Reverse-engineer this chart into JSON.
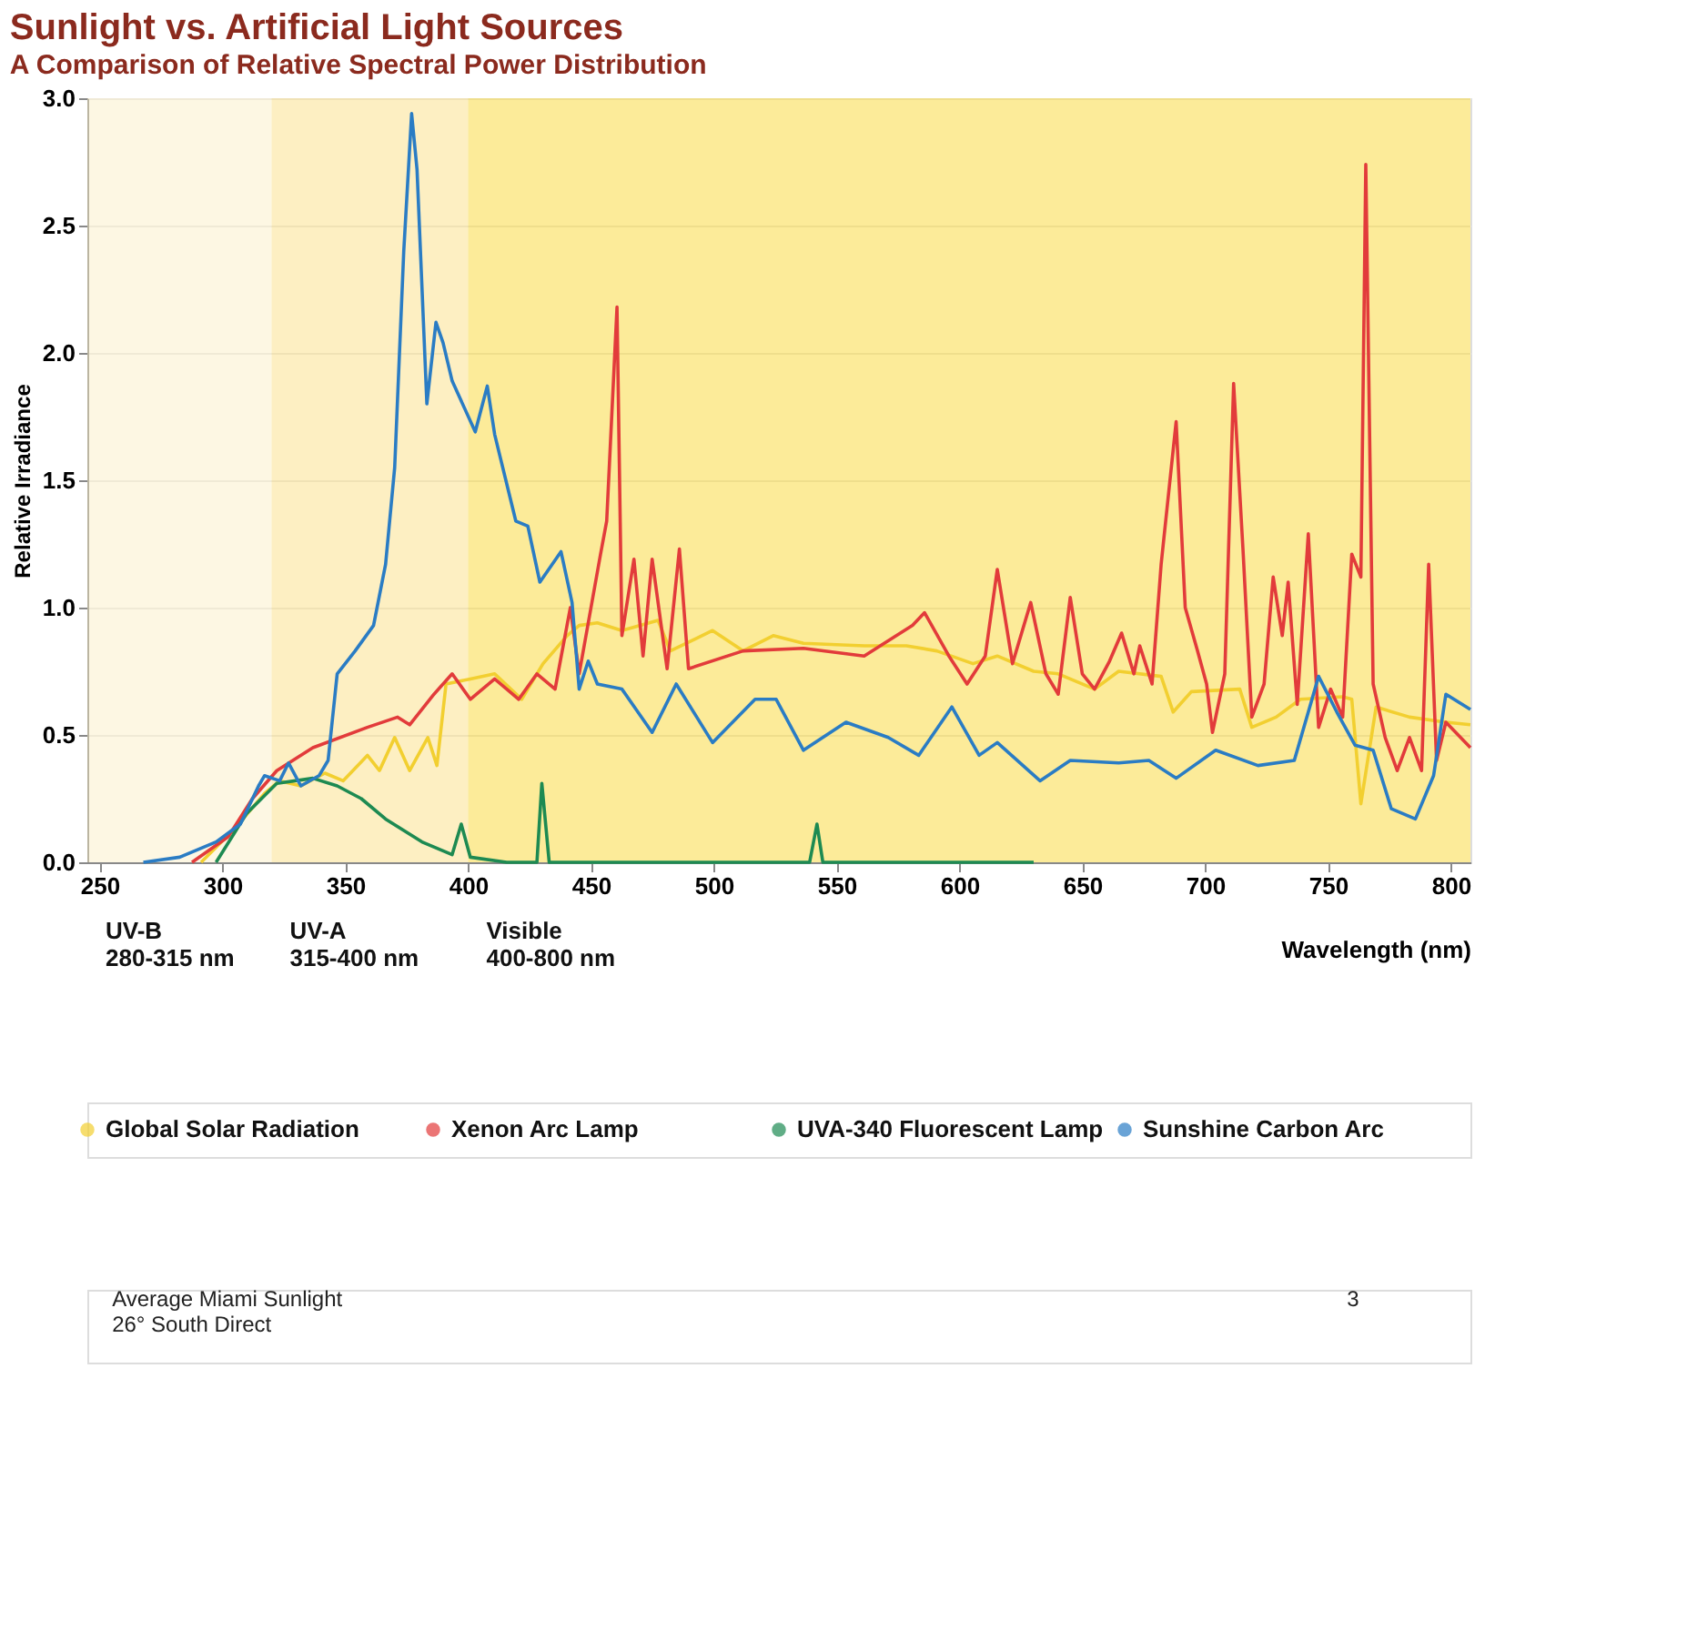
{
  "chart_data": {
    "type": "line",
    "title": "Sunlight vs. Artificial Light Sources",
    "subtitle": "A Comparison of Relative Spectral Power Distribution",
    "xlabel": "Wavelength (nm)",
    "ylabel": "Relative Irradiance",
    "xlim": [
      245,
      808
    ],
    "xticks": [
      250,
      300,
      350,
      400,
      450,
      500,
      550,
      600,
      650,
      700,
      750,
      800
    ],
    "ylim": [
      0,
      3.0
    ],
    "yticks": [
      {
        "value": 0,
        "label": "0.0"
      },
      {
        "value": 0.5,
        "label": "0.5"
      },
      {
        "value": 1,
        "label": "1.0"
      },
      {
        "value": 1.5,
        "label": "1.5"
      },
      {
        "value": 2,
        "label": "2.0"
      },
      {
        "value": 2.5,
        "label": "2.5"
      },
      {
        "value": 3,
        "label": "3.0"
      }
    ],
    "grid": "y",
    "legend": "bottom",
    "line_style": "solid",
    "marker": "none",
    "series": [
      {
        "name": "Global Solar Radiation",
        "color": "#f2cf30",
        "x": [
          291.3,
          304.8,
          317.1,
          323.3,
          331.9,
          341.7,
          349.1,
          359,
          363.9,
          370.1,
          376.2,
          383.6,
          387.3,
          391,
          400.9,
          410.8,
          421.8,
          430.5,
          440.3,
          445.2,
          452.6,
          462.6,
          477.3,
          482.3,
          499.5,
          511.9,
          524.2,
          536.5,
          561.2,
          578.4,
          590.8,
          605.5,
          615.4,
          630.2,
          640.2,
          655,
          664.8,
          682.1,
          687,
          694.4,
          714.1,
          719,
          728.9,
          738.8,
          756,
          759.7,
          763.4,
          769.6,
          783.2,
          798,
          808
        ],
        "values": [
          0,
          0.13,
          0.27,
          0.32,
          0.3,
          0.35,
          0.32,
          0.42,
          0.36,
          0.49,
          0.36,
          0.49,
          0.38,
          0.7,
          0.72,
          0.74,
          0.64,
          0.78,
          0.89,
          0.93,
          0.94,
          0.91,
          0.95,
          0.83,
          0.91,
          0.83,
          0.89,
          0.86,
          0.85,
          0.85,
          0.83,
          0.78,
          0.81,
          0.75,
          0.74,
          0.68,
          0.75,
          0.73,
          0.59,
          0.67,
          0.68,
          0.53,
          0.57,
          0.64,
          0.65,
          0.64,
          0.23,
          0.61,
          0.57,
          0.55,
          0.54
        ]
      },
      {
        "name": "Xenon Arc Lamp",
        "color": "#e23b3b",
        "x": [
          287.6,
          302.3,
          312.2,
          322.1,
          336.8,
          359,
          371.3,
          376.2,
          386.1,
          393.5,
          400.9,
          410.8,
          420.6,
          428,
          435.4,
          441.6,
          445.2,
          453.9,
          456.4,
          460.6,
          462.6,
          467.5,
          471.2,
          474.9,
          481,
          486,
          489.7,
          511.9,
          536.5,
          561.2,
          580.9,
          585.8,
          595.7,
          603.1,
          610.5,
          615.4,
          621.6,
          629,
          635.2,
          640.2,
          645.1,
          650,
          655,
          661.1,
          666,
          671,
          673.4,
          678.4,
          682.1,
          688.2,
          691.9,
          696.9,
          700.6,
          703,
          708,
          711.6,
          715.4,
          719,
          724,
          727.7,
          731.4,
          733.8,
          737.5,
          742,
          746.2,
          751.1,
          756,
          759.7,
          763.4,
          765.4,
          768.4,
          773.3,
          778.2,
          783.2,
          788.1,
          791,
          794.2,
          798,
          808
        ],
        "values": [
          0,
          0.1,
          0.25,
          0.36,
          0.45,
          0.53,
          0.57,
          0.54,
          0.66,
          0.74,
          0.64,
          0.72,
          0.64,
          0.74,
          0.68,
          1.0,
          0.74,
          1.21,
          1.34,
          2.18,
          0.89,
          1.19,
          0.81,
          1.19,
          0.76,
          1.23,
          0.76,
          0.83,
          0.84,
          0.81,
          0.93,
          0.98,
          0.81,
          0.7,
          0.81,
          1.15,
          0.78,
          1.02,
          0.74,
          0.66,
          1.04,
          0.74,
          0.68,
          0.79,
          0.9,
          0.74,
          0.85,
          0.7,
          1.17,
          1.73,
          1.0,
          0.83,
          0.7,
          0.51,
          0.74,
          1.88,
          1.23,
          0.57,
          0.7,
          1.12,
          0.89,
          1.1,
          0.62,
          1.29,
          0.53,
          0.68,
          0.57,
          1.21,
          1.12,
          2.74,
          0.7,
          0.49,
          0.36,
          0.49,
          0.36,
          1.17,
          0.4,
          0.55,
          0.45
        ]
      },
      {
        "name": "UVA-340 Fluorescent Lamp",
        "color": "#1d8a52",
        "x": [
          297.4,
          309.7,
          322.1,
          336.8,
          346.7,
          356.5,
          366.4,
          381.2,
          393.5,
          397.2,
          400.9,
          415.7,
          428,
          430,
          433,
          539,
          542,
          544.4,
          630.2
        ],
        "values": [
          0,
          0.19,
          0.31,
          0.33,
          0.3,
          0.25,
          0.17,
          0.08,
          0.03,
          0.15,
          0.02,
          0,
          0,
          0.31,
          0,
          0,
          0.15,
          0,
          0
        ]
      },
      {
        "name": "Sunshine Carbon Arc",
        "color": "#2a7cc4",
        "x": [
          267.8,
          282.6,
          297.4,
          307.3,
          314.7,
          317.1,
          323.3,
          326.9,
          331.9,
          339.3,
          343,
          346.7,
          354,
          361.5,
          366.4,
          370.1,
          373.8,
          377,
          379.2,
          383.2,
          386.9,
          389.8,
          393.5,
          402.9,
          407.8,
          410.8,
          419.4,
          424.3,
          429.2,
          437.8,
          442.3,
          445.2,
          448.9,
          452.6,
          462.6,
          474.9,
          484.7,
          499.5,
          516.8,
          525.4,
          536.5,
          553.8,
          571,
          583.4,
          596.9,
          608,
          615.4,
          632.8,
          645.1,
          664.8,
          677.1,
          688.2,
          704.3,
          721.5,
          736.3,
          746.2,
          753.6,
          761,
          768.4,
          775.8,
          785.6,
          793,
          798,
          808
        ],
        "values": [
          0,
          0.02,
          0.08,
          0.15,
          0.3,
          0.34,
          0.32,
          0.39,
          0.3,
          0.34,
          0.4,
          0.74,
          0.83,
          0.93,
          1.17,
          1.55,
          2.4,
          2.94,
          2.72,
          1.8,
          2.12,
          2.04,
          1.89,
          1.69,
          1.87,
          1.68,
          1.34,
          1.32,
          1.1,
          1.22,
          1.02,
          0.68,
          0.79,
          0.7,
          0.68,
          0.51,
          0.7,
          0.47,
          0.64,
          0.64,
          0.44,
          0.55,
          0.49,
          0.42,
          0.61,
          0.42,
          0.47,
          0.32,
          0.4,
          0.39,
          0.4,
          0.33,
          0.44,
          0.38,
          0.4,
          0.73,
          0.59,
          0.46,
          0.44,
          0.21,
          0.17,
          0.34,
          0.66,
          0.6
        ]
      }
    ],
    "bands": [
      {
        "axis": "x",
        "from": 245,
        "to": 320,
        "label": "UV-B\n280-315 nm",
        "color": "#fbeec2"
      },
      {
        "axis": "x",
        "from": 320,
        "to": 400,
        "label": "UV-A\n315-400 nm",
        "color": "#fbdc78"
      },
      {
        "axis": "x",
        "from": 400,
        "to": 808,
        "label": "Visible\n400-800 nm",
        "color": "#f9d21c"
      }
    ],
    "annotations": [
      "Average Miami Sunlight\n26° South Direct",
      "3"
    ]
  }
}
